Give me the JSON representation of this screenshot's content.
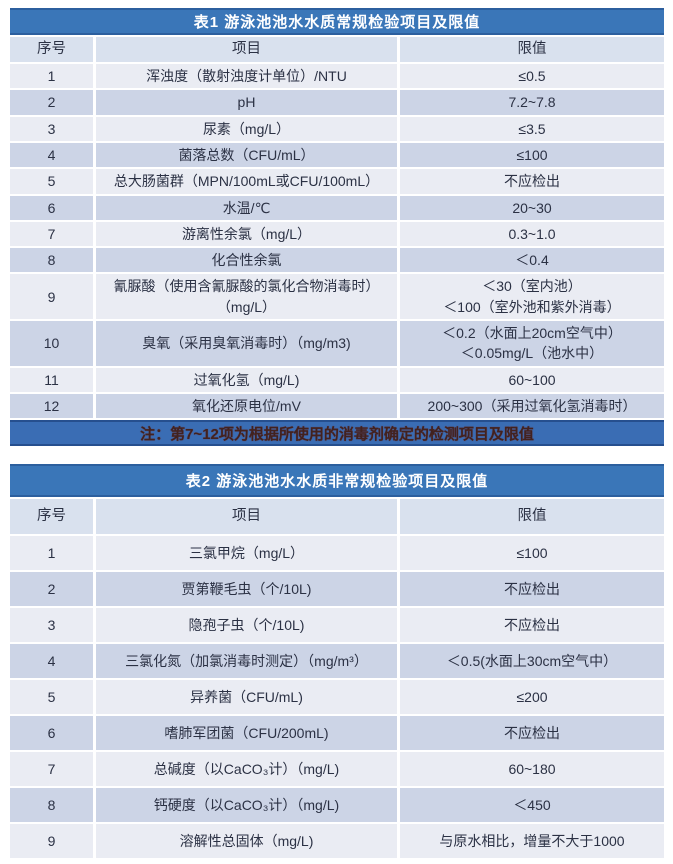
{
  "colors": {
    "title_bar_blue": "#3a76b8",
    "note_bar_blue": "#3a6db4",
    "header_row_bg": "#d9e1ee",
    "row_light_bg": "#eaecf3",
    "row_dark_bg": "#ccd4e6",
    "title_text": "#ffffff",
    "note_text": "#41221f",
    "cell_text": "#2b3144"
  },
  "table1": {
    "title": "表1   游泳池池水水质常规检验项目及限值",
    "columns": [
      "序号",
      "项目",
      "限值"
    ],
    "rows": [
      {
        "no": "1",
        "item": "浑浊度（散射浊度计单位）/NTU",
        "limit": "≤0.5"
      },
      {
        "no": "2",
        "item": "pH",
        "limit": "7.2~7.8"
      },
      {
        "no": "3",
        "item": "尿素（mg/L）",
        "limit": "≤3.5"
      },
      {
        "no": "4",
        "item": "菌落总数（CFU/mL）",
        "limit": "≤100"
      },
      {
        "no": "5",
        "item": "总大肠菌群（MPN/100mL或CFU/100mL）",
        "limit": "不应检出"
      },
      {
        "no": "6",
        "item": "水温/℃",
        "limit": "20~30"
      },
      {
        "no": "7",
        "item": "游离性余氯（mg/L）",
        "limit": "0.3~1.0"
      },
      {
        "no": "8",
        "item": "化合性余氯",
        "limit": "＜0.4"
      },
      {
        "no": "9",
        "item": "氰脲酸（使用含氰脲酸的氯化合物消毒时）（mg/L）",
        "limit": "＜30（室内池）\n＜100（室外池和紫外消毒）"
      },
      {
        "no": "10",
        "item": "臭氧（采用臭氧消毒时）（mg/m3)",
        "limit": "＜0.2（水面上20cm空气中）\n＜0.05mg/L（池水中）"
      },
      {
        "no": "11",
        "item": "过氧化氢（mg/L)",
        "limit": "60~100"
      },
      {
        "no": "12",
        "item": "氧化还原电位/mV",
        "limit": "200~300（采用过氧化氢消毒时）"
      }
    ],
    "note": "注：第7~12项为根据所使用的消毒剂确定的检测项目及限值"
  },
  "table2": {
    "title": "表2  游泳池池水水质非常规检验项目及限值",
    "columns": [
      "序号",
      "项目",
      "限值"
    ],
    "rows": [
      {
        "no": "1",
        "item": "三氯甲烷（mg/L）",
        "limit": "≤100"
      },
      {
        "no": "2",
        "item": "贾第鞭毛虫（个/10L)",
        "limit": "不应检出"
      },
      {
        "no": "3",
        "item": "隐孢子虫（个/10L)",
        "limit": "不应检出"
      },
      {
        "no": "4",
        "item": "三氯化氮（加氯消毒时测定）（mg/m³）",
        "limit": "＜0.5(水面上30cm空气中）"
      },
      {
        "no": "5",
        "item": "异养菌（CFU/mL)",
        "limit": "≤200"
      },
      {
        "no": "6",
        "item": "嗜肺军团菌（CFU/200mL)",
        "limit": "不应检出"
      },
      {
        "no": "7",
        "item": "总碱度（以CaCO₃计）（mg/L)",
        "limit": "60~180"
      },
      {
        "no": "8",
        "item": "钙硬度（以CaCO₃计）（mg/L)",
        "limit": "＜450"
      },
      {
        "no": "9",
        "item": "溶解性总固体（mg/L)",
        "limit": "与原水相比，增量不大于1000"
      }
    ]
  }
}
